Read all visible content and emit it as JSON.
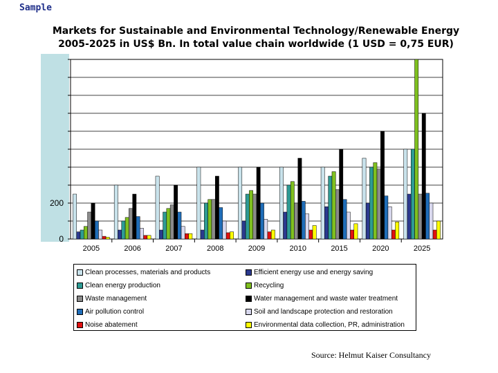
{
  "header": {
    "sample_label": "Sample"
  },
  "chart_data": {
    "type": "bar",
    "title": "Markets for Sustainable and Environmental Technology/Renewable Energy",
    "subtitle": "2005-2025 in US$ Bn. In total value chain worldwide (1 USD = 0,75 EUR)",
    "xlabel": "",
    "ylabel": "",
    "ylim": [
      0,
      1000
    ],
    "yticks": [
      0,
      200
    ],
    "grid": true,
    "legend_position": "bottom",
    "categories": [
      "2005",
      "2006",
      "2007",
      "2008",
      "2009",
      "2010",
      "2015",
      "2020",
      "2025"
    ],
    "series": [
      {
        "name": "Clean processes, materials and products",
        "color": "#c9e3ec",
        "values": [
          250,
          300,
          350,
          400,
          400,
          400,
          400,
          450,
          500
        ]
      },
      {
        "name": "Efficient energy use and energy saving",
        "color": "#2b3a8f",
        "values": [
          40,
          50,
          50,
          50,
          100,
          150,
          180,
          200,
          250
        ]
      },
      {
        "name": "Clean energy production",
        "color": "#2e9b94",
        "values": [
          50,
          100,
          150,
          200,
          250,
          300,
          350,
          400,
          500
        ]
      },
      {
        "name": "Recycling",
        "color": "#7fc01f",
        "values": [
          70,
          120,
          170,
          220,
          270,
          320,
          375,
          425,
          1000
        ]
      },
      {
        "name": "Waste management",
        "color": "#8a8a8a",
        "values": [
          150,
          170,
          190,
          220,
          250,
          200,
          275,
          390,
          250
        ]
      },
      {
        "name": "Water management and waste water treatment",
        "color": "#000000",
        "values": [
          200,
          250,
          300,
          350,
          400,
          450,
          500,
          600,
          700
        ]
      },
      {
        "name": "Air pollution control",
        "color": "#1f6db8",
        "values": [
          100,
          125,
          150,
          175,
          200,
          210,
          220,
          240,
          255
        ]
      },
      {
        "name": "Soil and landscape protection and restoration",
        "color": "#d8d8ee",
        "values": [
          50,
          60,
          70,
          100,
          110,
          140,
          150,
          180,
          200
        ]
      },
      {
        "name": "Noise abatement",
        "color": "#e01010",
        "values": [
          15,
          20,
          30,
          35,
          40,
          50,
          50,
          50,
          50
        ]
      },
      {
        "name": "Environmental data collection, PR, administration",
        "color": "#ffff00",
        "values": [
          10,
          20,
          30,
          40,
          50,
          75,
          85,
          95,
          100
        ]
      }
    ]
  },
  "source": "Source: Helmut Kaiser Consultancy"
}
